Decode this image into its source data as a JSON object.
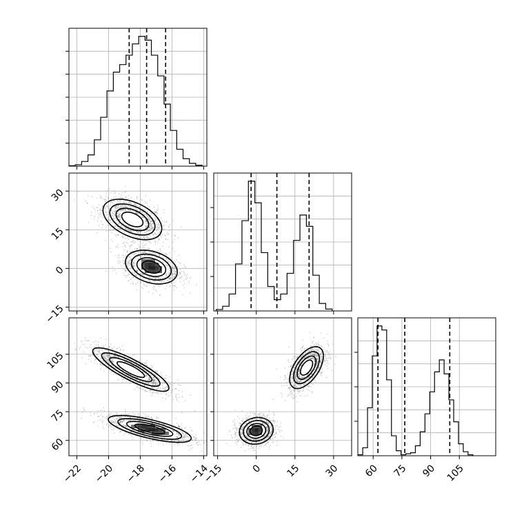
{
  "chart_data": {
    "type": "corner",
    "title": "",
    "parameters": [
      {
        "index": 0,
        "range": [
          -22.5,
          -13.8
        ],
        "ticks": [
          -22,
          -20,
          -18,
          -16,
          -14
        ],
        "tick_labels": [
          "−22",
          "−20",
          "−18",
          "−16",
          "−14"
        ],
        "quantiles": [
          -18.7,
          -17.6,
          -16.4
        ]
      },
      {
        "index": 1,
        "range": [
          -16.5,
          37
        ],
        "ticks": [
          -15,
          0,
          15,
          30
        ],
        "tick_labels": [
          "−15",
          "0",
          "15",
          "30"
        ],
        "quantiles": [
          -2,
          8,
          20.5
        ]
      },
      {
        "index": 2,
        "range": [
          52,
          124
        ],
        "ticks": [
          60,
          75,
          90,
          105
        ],
        "tick_labels": [
          "60",
          "75",
          "90",
          "105"
        ],
        "quantiles": [
          62.5,
          76.5,
          100
        ]
      }
    ],
    "histograms": [
      {
        "param": 0,
        "bin_width": 0.4,
        "x": [
          -22.3,
          -21.9,
          -21.5,
          -21.1,
          -20.7,
          -20.3,
          -19.9,
          -19.5,
          -19.1,
          -18.7,
          -18.3,
          -17.9,
          -17.5,
          -17.1,
          -16.7,
          -16.3,
          -15.9,
          -15.5,
          -15.1,
          -14.7,
          -14.3
        ],
        "counts": [
          0.5,
          1.5,
          5,
          12,
          28,
          52,
          80,
          100,
          108,
          118,
          130,
          138,
          134,
          118,
          96,
          66,
          38,
          18,
          8,
          3,
          1
        ]
      },
      {
        "param": 1,
        "bin_width": 2.5,
        "x": [
          -14.3,
          -11.8,
          -9.3,
          -6.8,
          -4.3,
          -1.8,
          0.7,
          3.2,
          5.7,
          8.2,
          10.7,
          13.2,
          15.7,
          18.2,
          20.7,
          23.2,
          25.7,
          28.2
        ],
        "counts": [
          1.5,
          5,
          18,
          50,
          96,
          138,
          115,
          62,
          26,
          12,
          18,
          40,
          75,
          102,
          90,
          38,
          8,
          2
        ]
      },
      {
        "param": 2,
        "bin_width": 2.5,
        "x": [
          53.3,
          55.8,
          58.3,
          60.8,
          63.3,
          65.8,
          68.3,
          70.8,
          73.3,
          75.8,
          78.3,
          80.8,
          83.3,
          85.8,
          88.3,
          90.8,
          93.3,
          95.8,
          98.3,
          100.8,
          103.3,
          105.8,
          108.3,
          110.8
        ],
        "counts": [
          1,
          8,
          48,
          100,
          130,
          126,
          76,
          20,
          5,
          1,
          2,
          3,
          10,
          24,
          42,
          64,
          84,
          96,
          82,
          56,
          34,
          12,
          4,
          1
        ]
      }
    ],
    "joint": [
      {
        "x_param": 0,
        "y_param": 1,
        "modes": [
          {
            "center": [
              -18.5,
              19
            ],
            "sd": [
              0.85,
              3.6
            ],
            "corr": -0.45,
            "weight": 0.5,
            "peak": 0.55
          },
          {
            "center": [
              -17.3,
              0.5
            ],
            "sd": [
              0.75,
              3.0
            ],
            "corr": -0.3,
            "weight": 0.5,
            "peak": 0.95
          }
        ]
      },
      {
        "x_param": 0,
        "y_param": 2,
        "modes": [
          {
            "center": [
              -18.6,
              97
            ],
            "sd": [
              1.1,
              5.2
            ],
            "corr": -0.85,
            "weight": 0.5,
            "peak": 0.6
          },
          {
            "center": [
              -17.4,
              66
            ],
            "sd": [
              1.2,
              3.2
            ],
            "corr": -0.7,
            "weight": 0.5,
            "peak": 0.95
          }
        ]
      },
      {
        "x_param": 1,
        "y_param": 2,
        "modes": [
          {
            "center": [
              0,
              65
            ],
            "sd": [
              3.0,
              3.2
            ],
            "corr": 0.1,
            "weight": 0.5,
            "peak": 0.95
          },
          {
            "center": [
              19.5,
              98
            ],
            "sd": [
              3.0,
              5.0
            ],
            "corr": 0.55,
            "weight": 0.5,
            "peak": 0.6
          }
        ]
      }
    ],
    "contour_levels": [
      0.4,
      0.7,
      0.9,
      0.98
    ],
    "grid": true,
    "colors": {
      "line": "#000000",
      "grid": "#b0b0b0",
      "points": "#6e6e6e"
    }
  }
}
